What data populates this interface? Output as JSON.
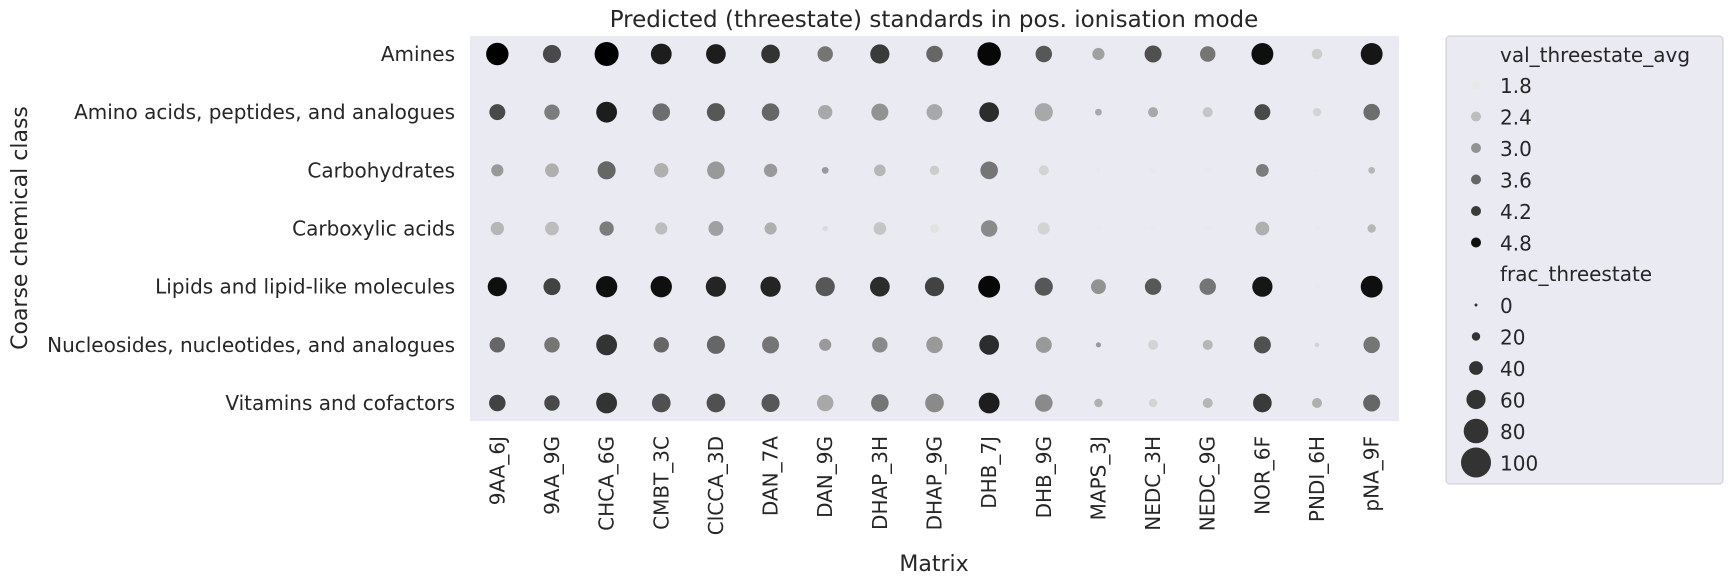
{
  "chart_data": {
    "type": "scatter",
    "title": "Predicted (threestate) standards in pos. ionisation mode",
    "xlabel": "Matrix",
    "ylabel": "Coarse chemical class",
    "x_categories": [
      "9AA_6J",
      "9AA_9G",
      "CHCA_6G",
      "CMBT_3C",
      "ClCCA_3D",
      "DAN_7A",
      "DAN_9G",
      "DHAP_3H",
      "DHAP_9G",
      "DHB_7J",
      "DHB_9G",
      "MAPS_3J",
      "NEDC_3H",
      "NEDC_9G",
      "NOR_6F",
      "PNDI_6H",
      "pNA_9F"
    ],
    "y_categories": [
      "Amines",
      "Amino acids, peptides, and analogues",
      "Carbohydrates",
      "Carboxylic acids",
      "Lipids and lipid-like molecules",
      "Nucleosides, nucleotides, and analogues",
      "Vitamins and cofactors"
    ],
    "color_variable": "val_threestate_avg",
    "size_variable": "frac_threestate",
    "legend": {
      "placement": "outside right",
      "color_title": "val_threestate_avg",
      "color_entries": [
        {
          "label": "1.8",
          "value": 1.8
        },
        {
          "label": "2.4",
          "value": 2.4
        },
        {
          "label": "3.0",
          "value": 3.0
        },
        {
          "label": "3.6",
          "value": 3.6
        },
        {
          "label": "4.2",
          "value": 4.2
        },
        {
          "label": "4.8",
          "value": 4.8
        }
      ],
      "size_title": "frac_threestate",
      "size_entries": [
        {
          "label": "0",
          "value": 0
        },
        {
          "label": "20",
          "value": 20
        },
        {
          "label": "40",
          "value": 40
        },
        {
          "label": "60",
          "value": 60
        },
        {
          "label": "80",
          "value": 80
        },
        {
          "label": "100",
          "value": 100
        }
      ]
    },
    "color_range": [
      1.5,
      5.0
    ],
    "size_range": [
      0,
      100
    ],
    "colormap": [
      "#ffffff",
      "#000000"
    ],
    "grid": false,
    "points": {
      "Amines": {
        "val": [
          5.0,
          4.0,
          5.0,
          4.6,
          4.6,
          4.3,
          3.4,
          4.2,
          3.6,
          4.9,
          3.8,
          2.8,
          3.9,
          3.4,
          4.8,
          2.2,
          4.7
        ],
        "frac": [
          72,
          56,
          78,
          66,
          62,
          58,
          46,
          60,
          50,
          76,
          50,
          34,
          52,
          46,
          70,
          28,
          70
        ]
      },
      "Amino acids, peptides, and analogues": {
        "val": [
          4.0,
          3.3,
          4.6,
          3.5,
          3.8,
          3.6,
          2.7,
          3.0,
          2.7,
          4.4,
          2.7,
          2.7,
          2.7,
          2.3,
          4.0,
          2.1,
          3.5
        ],
        "frac": [
          48,
          46,
          66,
          54,
          56,
          54,
          42,
          52,
          48,
          62,
          56,
          14,
          26,
          26,
          48,
          20,
          50
        ]
      },
      "Carbohydrates": {
        "val": [
          2.9,
          2.6,
          3.6,
          2.6,
          2.9,
          2.9,
          2.9,
          2.5,
          2.2,
          3.4,
          2.1,
          1.8,
          1.8,
          1.8,
          3.3,
          1.8,
          2.5
        ],
        "frac": [
          34,
          40,
          56,
          42,
          54,
          38,
          14,
          32,
          24,
          54,
          26,
          4,
          14,
          12,
          36,
          0,
          14
        ]
      },
      "Carboxylic acids": {
        "val": [
          2.5,
          2.4,
          3.3,
          2.4,
          2.8,
          2.6,
          2.0,
          2.3,
          1.9,
          3.1,
          2.1,
          1.8,
          1.8,
          1.8,
          2.6,
          1.8,
          2.5
        ],
        "frac": [
          38,
          40,
          42,
          34,
          44,
          34,
          10,
          36,
          22,
          50,
          34,
          4,
          12,
          12,
          40,
          8,
          20
        ]
      },
      "Lipids and lipid-like molecules": {
        "val": [
          4.8,
          4.1,
          4.8,
          4.8,
          4.5,
          4.5,
          3.8,
          4.4,
          4.1,
          4.9,
          3.8,
          3.0,
          3.8,
          3.4,
          4.7,
          1.8,
          4.8
        ],
        "frac": [
          60,
          52,
          68,
          68,
          64,
          64,
          60,
          62,
          60,
          70,
          56,
          44,
          50,
          50,
          64,
          8,
          70
        ]
      },
      "Nucleosides, nucleotides, and analogues": {
        "val": [
          3.6,
          3.4,
          4.3,
          3.6,
          3.6,
          3.4,
          2.9,
          3.1,
          2.9,
          4.4,
          2.9,
          2.9,
          2.1,
          2.5,
          3.9,
          2.1,
          3.4
        ],
        "frac": [
          46,
          46,
          66,
          46,
          56,
          52,
          34,
          46,
          50,
          62,
          48,
          8,
          26,
          26,
          52,
          6,
          50
        ]
      },
      "Vitamins and cofactors": {
        "val": [
          4.1,
          4.0,
          4.3,
          3.9,
          3.9,
          3.8,
          2.7,
          3.4,
          3.1,
          4.6,
          3.1,
          2.6,
          2.1,
          2.5,
          4.2,
          2.6,
          3.6
        ],
        "frac": [
          50,
          46,
          66,
          58,
          58,
          56,
          50,
          54,
          58,
          66,
          54,
          20,
          20,
          26,
          58,
          26,
          52
        ]
      }
    }
  }
}
